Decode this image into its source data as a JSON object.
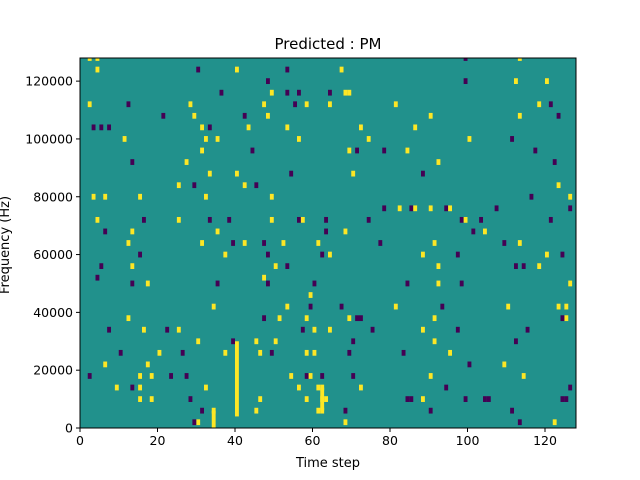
{
  "chart_data": {
    "type": "heatmap",
    "title": "Predicted : PM",
    "xlabel": "Time step",
    "ylabel": "Frequency (Hz)",
    "xlim": [
      0,
      128
    ],
    "ylim": [
      0,
      128000
    ],
    "xticks": [
      0,
      20,
      40,
      60,
      80,
      100,
      120
    ],
    "yticks": [
      0,
      20000,
      40000,
      60000,
      80000,
      100000,
      120000
    ],
    "value_range": [
      -1,
      1
    ],
    "colors": {
      "background": "#21918c",
      "positive": "#fde725",
      "negative": "#440154"
    },
    "bin_height": 2000,
    "cells": [
      [
        2,
        127000,
        1
      ],
      [
        4,
        127000,
        1
      ],
      [
        99,
        127000,
        -1
      ],
      [
        113,
        127000,
        1
      ],
      [
        4,
        123000,
        1
      ],
      [
        30,
        123000,
        -1
      ],
      [
        40,
        123000,
        1
      ],
      [
        53,
        123000,
        -1
      ],
      [
        67,
        123000,
        1
      ],
      [
        48,
        119000,
        -1
      ],
      [
        99,
        119000,
        -1
      ],
      [
        112,
        119000,
        1
      ],
      [
        120,
        119000,
        1
      ],
      [
        36,
        115000,
        -1
      ],
      [
        49,
        115000,
        1
      ],
      [
        53,
        115000,
        -1
      ],
      [
        56,
        115000,
        -1
      ],
      [
        64,
        115000,
        -1
      ],
      [
        68,
        115000,
        1
      ],
      [
        69,
        115000,
        1
      ],
      [
        2,
        111000,
        1
      ],
      [
        12,
        111000,
        -1
      ],
      [
        28,
        111000,
        1
      ],
      [
        47,
        111000,
        1
      ],
      [
        55,
        111000,
        -1
      ],
      [
        58,
        111000,
        1
      ],
      [
        64,
        111000,
        1
      ],
      [
        81,
        111000,
        1
      ],
      [
        118,
        111000,
        1
      ],
      [
        121,
        111000,
        -1
      ],
      [
        21,
        107000,
        -1
      ],
      [
        29,
        107000,
        1
      ],
      [
        42,
        107000,
        -1
      ],
      [
        48,
        107000,
        1
      ],
      [
        90,
        107000,
        1
      ],
      [
        113,
        107000,
        1
      ],
      [
        123,
        107000,
        -1
      ],
      [
        3,
        103000,
        -1
      ],
      [
        5,
        103000,
        -1
      ],
      [
        7,
        103000,
        -1
      ],
      [
        31,
        103000,
        1
      ],
      [
        33,
        103000,
        -1
      ],
      [
        43,
        103000,
        1
      ],
      [
        53,
        103000,
        1
      ],
      [
        72,
        103000,
        1
      ],
      [
        86,
        103000,
        1
      ],
      [
        11,
        99000,
        1
      ],
      [
        32,
        99000,
        1
      ],
      [
        35,
        99000,
        1
      ],
      [
        56,
        99000,
        1
      ],
      [
        74,
        99000,
        1
      ],
      [
        100,
        99000,
        1
      ],
      [
        111,
        99000,
        -1
      ],
      [
        31,
        95000,
        1
      ],
      [
        44,
        95000,
        -1
      ],
      [
        69,
        95000,
        1
      ],
      [
        71,
        95000,
        -1
      ],
      [
        78,
        95000,
        -1
      ],
      [
        84,
        95000,
        1
      ],
      [
        117,
        95000,
        -1
      ],
      [
        13,
        91000,
        -1
      ],
      [
        27,
        91000,
        1
      ],
      [
        92,
        91000,
        1
      ],
      [
        122,
        91000,
        -1
      ],
      [
        33,
        87000,
        1
      ],
      [
        40,
        87000,
        1
      ],
      [
        54,
        87000,
        -1
      ],
      [
        70,
        87000,
        1
      ],
      [
        88,
        87000,
        -1
      ],
      [
        25,
        83000,
        1
      ],
      [
        29,
        83000,
        -1
      ],
      [
        42,
        83000,
        1
      ],
      [
        45,
        83000,
        -1
      ],
      [
        123,
        83000,
        1
      ],
      [
        3,
        79000,
        1
      ],
      [
        6,
        79000,
        1
      ],
      [
        15,
        79000,
        1
      ],
      [
        32,
        79000,
        1
      ],
      [
        49,
        79000,
        1
      ],
      [
        116,
        79000,
        -1
      ],
      [
        126,
        79000,
        1
      ],
      [
        78,
        75000,
        -1
      ],
      [
        82,
        75000,
        1
      ],
      [
        85,
        75000,
        -1
      ],
      [
        86,
        75000,
        1
      ],
      [
        90,
        75000,
        1
      ],
      [
        94,
        75000,
        -1
      ],
      [
        95,
        75000,
        1
      ],
      [
        107,
        75000,
        -1
      ],
      [
        126,
        75000,
        -1
      ],
      [
        4,
        71000,
        1
      ],
      [
        16,
        71000,
        -1
      ],
      [
        25,
        71000,
        1
      ],
      [
        33,
        71000,
        -1
      ],
      [
        38,
        71000,
        -1
      ],
      [
        49,
        71000,
        1
      ],
      [
        56,
        71000,
        -1
      ],
      [
        57,
        71000,
        1
      ],
      [
        63,
        71000,
        -1
      ],
      [
        74,
        71000,
        -1
      ],
      [
        98,
        71000,
        -1
      ],
      [
        99,
        71000,
        1
      ],
      [
        103,
        71000,
        -1
      ],
      [
        121,
        71000,
        -1
      ],
      [
        6,
        67000,
        -1
      ],
      [
        13,
        67000,
        1
      ],
      [
        35,
        67000,
        1
      ],
      [
        63,
        67000,
        -1
      ],
      [
        68,
        67000,
        1
      ],
      [
        101,
        67000,
        -1
      ],
      [
        104,
        67000,
        1
      ],
      [
        12,
        63000,
        1
      ],
      [
        31,
        63000,
        1
      ],
      [
        39,
        63000,
        -1
      ],
      [
        42,
        63000,
        1
      ],
      [
        47,
        63000,
        -1
      ],
      [
        52,
        63000,
        1
      ],
      [
        61,
        63000,
        1
      ],
      [
        77,
        63000,
        -1
      ],
      [
        91,
        63000,
        1
      ],
      [
        109,
        63000,
        -1
      ],
      [
        113,
        63000,
        1
      ],
      [
        15,
        59000,
        -1
      ],
      [
        37,
        59000,
        1
      ],
      [
        48,
        59000,
        -1
      ],
      [
        62,
        59000,
        -1
      ],
      [
        64,
        59000,
        1
      ],
      [
        88,
        59000,
        1
      ],
      [
        97,
        59000,
        -1
      ],
      [
        120,
        59000,
        1
      ],
      [
        124,
        59000,
        -1
      ],
      [
        5,
        55000,
        -1
      ],
      [
        13,
        55000,
        1
      ],
      [
        50,
        55000,
        1
      ],
      [
        53,
        55000,
        -1
      ],
      [
        92,
        55000,
        1
      ],
      [
        112,
        55000,
        -1
      ],
      [
        114,
        55000,
        -1
      ],
      [
        118,
        55000,
        1
      ],
      [
        4,
        51000,
        -1
      ],
      [
        47,
        51000,
        1
      ],
      [
        13,
        49000,
        -1
      ],
      [
        17,
        49000,
        1
      ],
      [
        35,
        49000,
        -1
      ],
      [
        48,
        49000,
        -1
      ],
      [
        60,
        49000,
        -1
      ],
      [
        84,
        49000,
        -1
      ],
      [
        92,
        49000,
        1
      ],
      [
        98,
        49000,
        -1
      ],
      [
        126,
        49000,
        1
      ],
      [
        59,
        45000,
        1
      ],
      [
        34,
        41000,
        1
      ],
      [
        53,
        41000,
        1
      ],
      [
        59,
        41000,
        -1
      ],
      [
        67,
        41000,
        -1
      ],
      [
        81,
        41000,
        1
      ],
      [
        93,
        41000,
        -1
      ],
      [
        110,
        41000,
        1
      ],
      [
        123,
        41000,
        1
      ],
      [
        125,
        41000,
        1
      ],
      [
        12,
        37000,
        1
      ],
      [
        47,
        37000,
        -1
      ],
      [
        51,
        37000,
        1
      ],
      [
        58,
        37000,
        1
      ],
      [
        69,
        37000,
        1
      ],
      [
        71,
        37000,
        -1
      ],
      [
        72,
        37000,
        -1
      ],
      [
        91,
        37000,
        1
      ],
      [
        125,
        37000,
        1
      ],
      [
        124,
        37000,
        -1
      ],
      [
        7,
        33000,
        -1
      ],
      [
        16,
        33000,
        1
      ],
      [
        22,
        33000,
        -1
      ],
      [
        25,
        33000,
        1
      ],
      [
        57,
        33000,
        -1
      ],
      [
        60,
        33000,
        1
      ],
      [
        64,
        33000,
        1
      ],
      [
        75,
        33000,
        -1
      ],
      [
        88,
        33000,
        1
      ],
      [
        97,
        33000,
        -1
      ],
      [
        115,
        33000,
        -1
      ],
      [
        30,
        29000,
        1
      ],
      [
        39,
        29000,
        -1
      ],
      [
        45,
        29000,
        1
      ],
      [
        50,
        29000,
        1
      ],
      [
        70,
        29000,
        -1
      ],
      [
        91,
        29000,
        1
      ],
      [
        112,
        29000,
        -1
      ],
      [
        10,
        25000,
        -1
      ],
      [
        20,
        25000,
        1
      ],
      [
        26,
        25000,
        -1
      ],
      [
        37,
        25000,
        1
      ],
      [
        46,
        25000,
        1
      ],
      [
        49,
        25000,
        -1
      ],
      [
        58,
        25000,
        1
      ],
      [
        60,
        25000,
        1
      ],
      [
        69,
        25000,
        -1
      ],
      [
        83,
        25000,
        -1
      ],
      [
        95,
        25000,
        1
      ],
      [
        6,
        21000,
        1
      ],
      [
        17,
        21000,
        1
      ],
      [
        100,
        21000,
        -1
      ],
      [
        109,
        21000,
        1
      ],
      [
        2,
        17000,
        -1
      ],
      [
        15,
        17000,
        1
      ],
      [
        18,
        17000,
        1
      ],
      [
        23,
        17000,
        -1
      ],
      [
        27,
        17000,
        -1
      ],
      [
        54,
        17000,
        1
      ],
      [
        58,
        17000,
        -1
      ],
      [
        59,
        17000,
        1
      ],
      [
        62,
        17000,
        -1
      ],
      [
        70,
        17000,
        -1
      ],
      [
        90,
        17000,
        1
      ],
      [
        114,
        17000,
        1
      ],
      [
        9,
        13000,
        1
      ],
      [
        13,
        13000,
        -1
      ],
      [
        15,
        13000,
        1
      ],
      [
        32,
        13000,
        1
      ],
      [
        56,
        13000,
        1
      ],
      [
        61,
        13000,
        1
      ],
      [
        62,
        13000,
        1
      ],
      [
        72,
        13000,
        1
      ],
      [
        94,
        13000,
        -1
      ],
      [
        126,
        13000,
        -1
      ],
      [
        15,
        9000,
        1
      ],
      [
        18,
        9000,
        1
      ],
      [
        28,
        9000,
        -1
      ],
      [
        46,
        9000,
        1
      ],
      [
        58,
        9000,
        1
      ],
      [
        62,
        9000,
        1
      ],
      [
        63,
        9000,
        1
      ],
      [
        84,
        9000,
        -1
      ],
      [
        85,
        9000,
        -1
      ],
      [
        88,
        9000,
        1
      ],
      [
        99,
        9000,
        -1
      ],
      [
        104,
        9000,
        -1
      ],
      [
        105,
        9000,
        -1
      ],
      [
        124,
        9000,
        -1
      ],
      [
        125,
        9000,
        -1
      ],
      [
        31,
        5000,
        -1
      ],
      [
        34,
        5000,
        1
      ],
      [
        45,
        5000,
        1
      ],
      [
        61,
        5000,
        1
      ],
      [
        62,
        5000,
        1
      ],
      [
        68,
        5000,
        -1
      ],
      [
        90,
        5000,
        -1
      ],
      [
        111,
        5000,
        -1
      ],
      [
        30,
        1000,
        1
      ],
      [
        29,
        1000,
        -1
      ],
      [
        68,
        1000,
        1
      ],
      [
        113,
        1000,
        -1
      ],
      [
        122,
        1000,
        1
      ]
    ],
    "column_runs": [
      [
        40,
        4000,
        30000,
        1
      ],
      [
        34,
        0,
        6000,
        1
      ],
      [
        62,
        6000,
        14000,
        1
      ]
    ]
  }
}
